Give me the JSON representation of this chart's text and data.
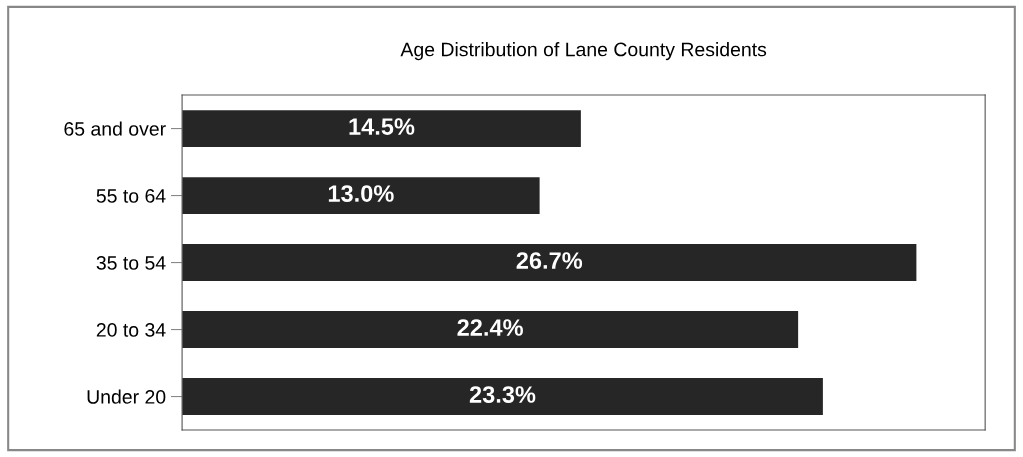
{
  "chart_data": {
    "type": "bar",
    "orientation": "horizontal",
    "title": "Age Distribution of Lane County Residents",
    "categories": [
      "65 and over",
      "55 to 64",
      "35 to 54",
      "20 to 34",
      "Under 20"
    ],
    "values": [
      14.5,
      13.0,
      26.7,
      22.4,
      23.3
    ],
    "value_labels": [
      "14.5%",
      "13.0%",
      "26.7%",
      "22.4%",
      "23.3%"
    ],
    "color": "#262626",
    "xlim": [
      0,
      29.2
    ],
    "tick_labels": "y",
    "grid": false,
    "legend": false
  }
}
